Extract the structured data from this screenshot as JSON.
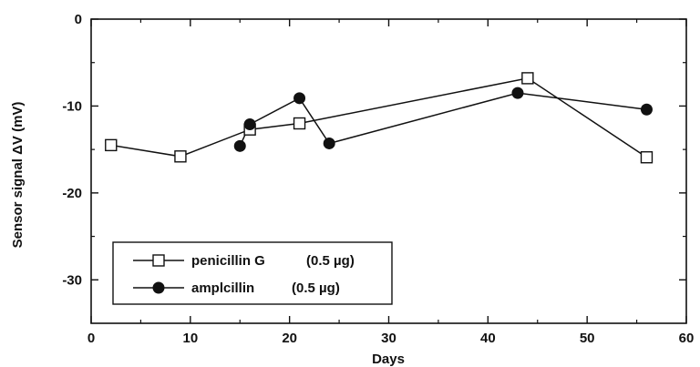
{
  "chart_data": {
    "type": "line",
    "xlabel": "Days",
    "ylabel": "Sensor signal ΔV (mV)",
    "xlim": [
      0,
      60
    ],
    "ylim": [
      -35,
      0
    ],
    "xticks": [
      0,
      10,
      20,
      30,
      40,
      50,
      60
    ],
    "yticks": [
      0,
      -10,
      -20,
      -30
    ],
    "xtick_labels": [
      "0",
      "10",
      "20",
      "30",
      "40",
      "50",
      "60"
    ],
    "ytick_labels": [
      "0",
      "-10",
      "-20",
      "-30"
    ],
    "grid": false,
    "legend_placement": "bottom-left",
    "series": [
      {
        "name": "penicillin G",
        "dose": "(0.5 µg)",
        "marker": "open-square",
        "x": [
          2,
          9,
          16,
          21,
          44,
          56
        ],
        "y": [
          -14.5,
          -15.8,
          -12.7,
          -12.0,
          -6.8,
          -15.9
        ]
      },
      {
        "name": "amplcillin",
        "dose": "(0.5 µg)",
        "marker": "filled-circle",
        "x": [
          15,
          16,
          21,
          24,
          43,
          56
        ],
        "y": [
          -14.6,
          -12.1,
          -9.1,
          -14.3,
          -8.5,
          -10.4
        ]
      }
    ]
  }
}
